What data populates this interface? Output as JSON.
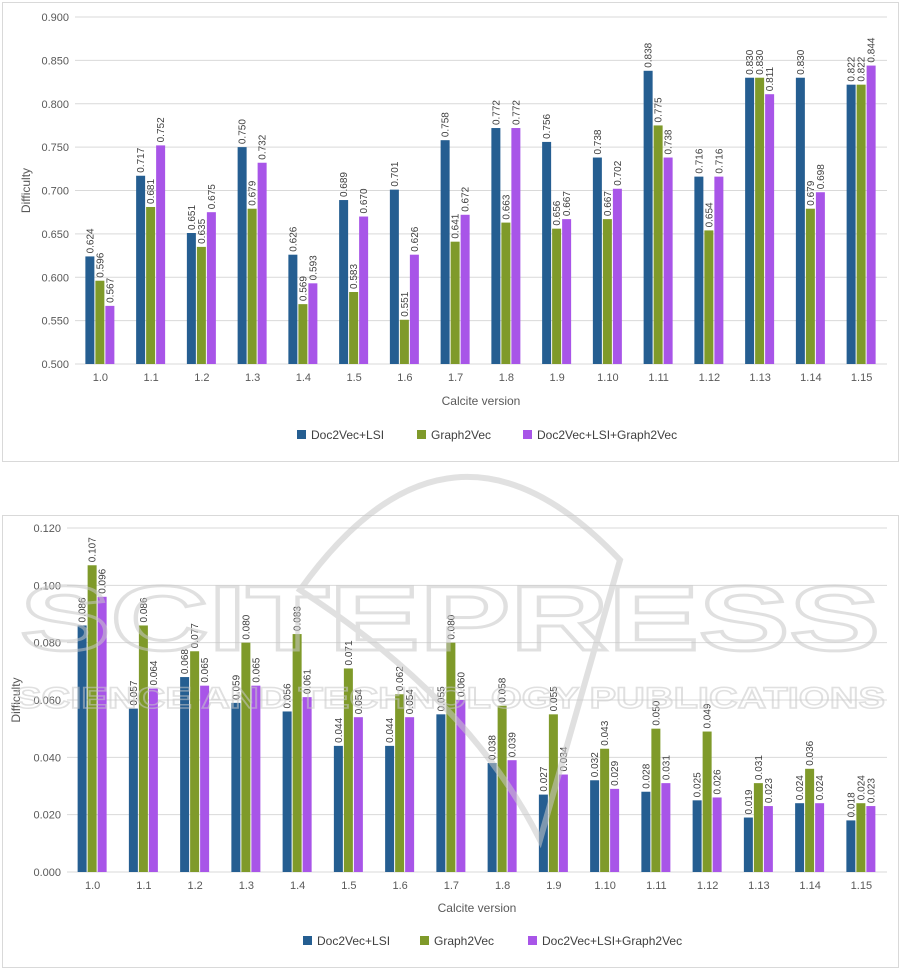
{
  "colors": {
    "series": [
      "#255e91",
      "#7f9a2a",
      "#a855e8"
    ],
    "grid": "#d9d9d9",
    "text": "#595959"
  },
  "watermark": {
    "line1": "SCITEPRESS",
    "line2": "SCIENCE AND TECHNOLOGY PUBLICATIONS"
  },
  "chart_data": [
    {
      "type": "bar",
      "title": "",
      "xlabel": "Calcite version",
      "ylabel": "Difficulty",
      "ylim": [
        0.5,
        0.9
      ],
      "yticks": [
        "0.500",
        "0.550",
        "0.600",
        "0.650",
        "0.700",
        "0.750",
        "0.800",
        "0.850",
        "0.900"
      ],
      "grid": true,
      "legend_position": "bottom",
      "categories": [
        "1.0",
        "1.1",
        "1.2",
        "1.3",
        "1.4",
        "1.5",
        "1.6",
        "1.7",
        "1.8",
        "1.9",
        "1.10",
        "1.11",
        "1.12",
        "1.13",
        "1.14",
        "1.15"
      ],
      "series": [
        {
          "name": "Doc2Vec+LSI",
          "values": [
            0.624,
            0.717,
            0.651,
            0.75,
            0.626,
            0.689,
            0.701,
            0.758,
            0.772,
            0.756,
            0.738,
            0.838,
            0.716,
            0.83,
            0.83,
            0.822
          ]
        },
        {
          "name": "Graph2Vec",
          "values": [
            0.596,
            0.681,
            0.635,
            0.679,
            0.569,
            0.583,
            0.551,
            0.641,
            0.663,
            0.656,
            0.667,
            0.775,
            0.654,
            0.83,
            0.679,
            0.822
          ]
        },
        {
          "name": "Doc2Vec+LSI+Graph2Vec",
          "values": [
            0.567,
            0.752,
            0.675,
            0.732,
            0.593,
            0.67,
            0.626,
            0.672,
            0.772,
            0.667,
            0.702,
            0.738,
            0.716,
            0.811,
            0.698,
            0.844
          ]
        }
      ]
    },
    {
      "type": "bar",
      "title": "",
      "xlabel": "Calcite version",
      "ylabel": "Difficulty",
      "ylim": [
        0.0,
        0.12
      ],
      "yticks": [
        "0.000",
        "0.020",
        "0.040",
        "0.060",
        "0.080",
        "0.100",
        "0.120"
      ],
      "grid": true,
      "legend_position": "bottom",
      "categories": [
        "1.0",
        "1.1",
        "1.2",
        "1.3",
        "1.4",
        "1.5",
        "1.6",
        "1.7",
        "1.8",
        "1.9",
        "1.10",
        "1.11",
        "1.12",
        "1.13",
        "1.14",
        "1.15"
      ],
      "series": [
        {
          "name": "Doc2Vec+LSI",
          "values": [
            0.086,
            0.057,
            0.068,
            0.059,
            0.056,
            0.044,
            0.044,
            0.055,
            0.038,
            0.027,
            0.032,
            0.028,
            0.025,
            0.019,
            0.024,
            0.018
          ]
        },
        {
          "name": "Graph2Vec",
          "values": [
            0.107,
            0.086,
            0.077,
            0.08,
            0.083,
            0.071,
            0.062,
            0.08,
            0.058,
            0.055,
            0.043,
            0.05,
            0.049,
            0.031,
            0.036,
            0.024
          ]
        },
        {
          "name": "Doc2Vec+LSI+Graph2Vec",
          "values": [
            0.096,
            0.064,
            0.065,
            0.065,
            0.061,
            0.054,
            0.054,
            0.06,
            0.039,
            0.034,
            0.029,
            0.031,
            0.026,
            0.023,
            0.024,
            0.023
          ]
        }
      ]
    }
  ]
}
